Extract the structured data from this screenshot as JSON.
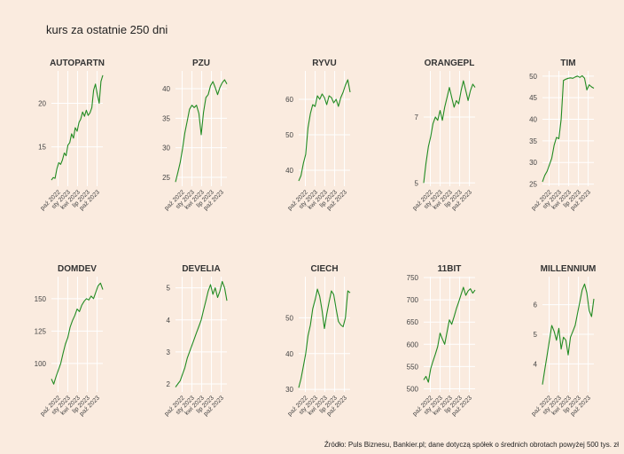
{
  "title": "kurs za ostatnie 250 dni",
  "footer": "Źródło: Puls Biznesu, Bankier.pl; dane dotyczą spółek o średnich obrotach powyżej 500 tys. zł",
  "colors": {
    "background": "#FAEBDF",
    "line": "#228B22",
    "grid": "#FFFFFF"
  },
  "chart_data": [
    {
      "type": "line",
      "title": "AUTOPARTN",
      "ylim": [
        10.5,
        23.7
      ],
      "yticks": [
        15,
        20
      ],
      "x_ticks": [
        "paź 2022",
        "sty 2023",
        "kwi 2023",
        "lip 2023",
        "paź 2023"
      ],
      "values": [
        11.2,
        11.5,
        11.4,
        12.5,
        13.2,
        13.0,
        13.5,
        14.3,
        14.0,
        15.2,
        15.5,
        16.5,
        16.0,
        17.2,
        16.8,
        17.8,
        18.2,
        19.0,
        18.5,
        19.2,
        18.6,
        18.9,
        19.5,
        21.5,
        22.2,
        21.0,
        20.0,
        22.5,
        23.2
      ]
    },
    {
      "type": "line",
      "title": "PZU",
      "ylim": [
        23.5,
        43.0
      ],
      "yticks": [
        25,
        30,
        35,
        40
      ],
      "x_ticks": [
        "paź 2022",
        "sty 2023",
        "kwi 2023",
        "lip 2023",
        "paź 2023"
      ],
      "values": [
        24.2,
        25.8,
        27.5,
        29.8,
        32.5,
        34.5,
        36.5,
        37.2,
        36.8,
        37.2,
        35.8,
        32.2,
        36.0,
        38.5,
        39.0,
        40.5,
        41.2,
        40.2,
        39.0,
        40.2,
        41.0,
        41.5,
        40.8
      ]
    },
    {
      "type": "line",
      "title": "RYVU",
      "ylim": [
        35.5,
        68.0
      ],
      "yticks": [
        40,
        50,
        60
      ],
      "x_ticks": [
        "paź 2022",
        "sty 2023",
        "kwi 2023",
        "lip 2023",
        "paź 2023"
      ],
      "values": [
        37.0,
        38.5,
        42.0,
        44.5,
        52.0,
        56.0,
        58.5,
        58.0,
        61.0,
        60.0,
        61.5,
        60.5,
        58.5,
        61.0,
        60.5,
        59.0,
        60.0,
        58.0,
        60.5,
        62.0,
        64.0,
        65.5,
        62.0
      ]
    },
    {
      "type": "line",
      "title": "ORANGEPL",
      "ylim": [
        4.9,
        8.4
      ],
      "yticks": [
        5,
        7
      ],
      "x_ticks": [
        "paź 2022",
        "sty 2023",
        "kwi 2023",
        "lip 2023",
        "paź 2023"
      ],
      "values": [
        5.0,
        5.6,
        6.1,
        6.4,
        6.8,
        7.0,
        6.9,
        7.2,
        6.9,
        7.3,
        7.6,
        7.9,
        7.6,
        7.3,
        7.5,
        7.4,
        7.8,
        8.1,
        7.8,
        7.5,
        7.8,
        8.0,
        7.9
      ]
    },
    {
      "type": "line",
      "title": "TIM",
      "ylim": [
        24.5,
        51.2
      ],
      "yticks": [
        25,
        30,
        35,
        40,
        45,
        50
      ],
      "x_ticks": [
        "paź 2022",
        "sty 2023",
        "kwi 2023",
        "lip 2023",
        "paź 2023"
      ],
      "values": [
        25.5,
        27.0,
        28.0,
        29.5,
        31.0,
        34.0,
        35.8,
        35.5,
        40.0,
        49.0,
        49.3,
        49.5,
        49.6,
        49.5,
        49.8,
        50.0,
        49.7,
        50.1,
        49.5,
        46.8,
        48.0,
        47.5,
        47.2
      ]
    },
    {
      "type": "line",
      "title": "DOMDEV",
      "ylim": [
        78.0,
        167.0
      ],
      "yticks": [
        100,
        125,
        150
      ],
      "x_ticks": [
        "paź 2022",
        "sty 2023",
        "kwi 2023",
        "lip 2023",
        "paź 2023"
      ],
      "values": [
        88,
        84,
        90,
        95,
        100,
        108,
        115,
        120,
        128,
        133,
        137,
        142,
        140,
        145,
        148,
        150,
        149,
        152,
        150,
        155,
        160,
        162,
        157
      ]
    },
    {
      "type": "line",
      "title": "DEVELIA",
      "ylim": [
        1.75,
        5.35
      ],
      "yticks": [
        2,
        3,
        4,
        5
      ],
      "x_ticks": [
        "paź 2022",
        "sty 2023",
        "kwi 2023",
        "lip 2023",
        "paź 2023"
      ],
      "values": [
        1.9,
        2.0,
        2.1,
        2.3,
        2.5,
        2.8,
        3.0,
        3.2,
        3.4,
        3.6,
        3.8,
        4.0,
        4.3,
        4.6,
        4.9,
        5.1,
        4.8,
        5.0,
        4.7,
        4.9,
        5.2,
        5.0,
        4.6
      ]
    },
    {
      "type": "line",
      "title": "CIECH",
      "ylim": [
        29.3,
        61.5
      ],
      "yticks": [
        30,
        40,
        50
      ],
      "x_ticks": [
        "paź 2022",
        "sty 2023",
        "kwi 2023",
        "lip 2023",
        "paź 2023"
      ],
      "values": [
        30.5,
        33.0,
        36.5,
        40.0,
        45.0,
        48.0,
        52.5,
        55.0,
        58.0,
        56.0,
        52.0,
        47.0,
        51.0,
        54.5,
        57.5,
        56.5,
        52.5,
        49.0,
        48.0,
        47.5,
        50.0,
        57.5,
        57.0
      ]
    },
    {
      "type": "line",
      "title": "11BIT",
      "ylim": [
        493,
        752
      ],
      "yticks": [
        500,
        550,
        600,
        650,
        700,
        750
      ],
      "x_ticks": [
        "paź 2022",
        "sty 2023",
        "kwi 2023",
        "lip 2023",
        "paź 2023"
      ],
      "values": [
        520,
        528,
        515,
        545,
        562,
        578,
        595,
        625,
        612,
        600,
        628,
        655,
        645,
        662,
        680,
        695,
        712,
        728,
        710,
        720,
        725,
        715,
        722
      ]
    },
    {
      "type": "line",
      "title": "MILLENNIUM",
      "ylim": [
        3.05,
        6.95
      ],
      "yticks": [
        4,
        5,
        6
      ],
      "x_ticks": [
        "paź 2022",
        "sty 2023",
        "kwi 2023",
        "lip 2023",
        "paź 2023"
      ],
      "values": [
        3.3,
        3.8,
        4.3,
        4.8,
        5.3,
        5.1,
        4.8,
        5.2,
        4.5,
        4.9,
        4.8,
        4.3,
        4.9,
        5.1,
        5.3,
        5.7,
        6.1,
        6.5,
        6.7,
        6.4,
        5.8,
        5.6,
        6.2
      ]
    }
  ]
}
